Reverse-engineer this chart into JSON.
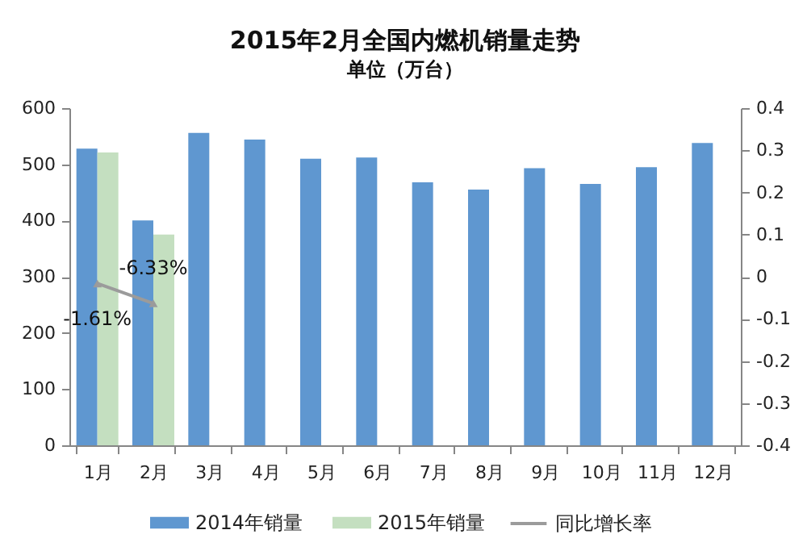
{
  "chart_data": {
    "type": "bar",
    "title": "2015年2月全国内燃机销量走势",
    "subtitle": "单位（万台）",
    "categories": [
      "1月",
      "2月",
      "3月",
      "4月",
      "5月",
      "6月",
      "7月",
      "8月",
      "9月",
      "10月",
      "11月",
      "12月"
    ],
    "series": [
      {
        "name": "2014年销量",
        "color": "#5f97d0",
        "values": [
          528,
          400,
          556,
          544,
          510,
          512,
          468,
          455,
          493,
          465,
          495,
          538
        ]
      },
      {
        "name": "2015年销量",
        "color": "#c4dfc0",
        "values": [
          521,
          375,
          null,
          null,
          null,
          null,
          null,
          null,
          null,
          null,
          null,
          null
        ]
      },
      {
        "name": "同比增长率",
        "type": "line",
        "axis": "y2",
        "color": "#9b9b9b",
        "values": [
          -0.0161,
          -0.0633,
          null,
          null,
          null,
          null,
          null,
          null,
          null,
          null,
          null,
          null
        ],
        "value_labels": [
          "-1.61%",
          "-6.33%",
          null,
          null,
          null,
          null,
          null,
          null,
          null,
          null,
          null,
          null
        ]
      }
    ],
    "ylim": [
      0,
      600
    ],
    "yticks": [
      0,
      100,
      200,
      300,
      400,
      500,
      600
    ],
    "y2lim": [
      -0.4,
      0.4
    ],
    "y2ticks": [
      -0.4,
      -0.3,
      -0.2,
      -0.1,
      0,
      0.1,
      0.2,
      0.3,
      0.4
    ],
    "legend": "bottom",
    "grid": false,
    "marker": "triangle"
  }
}
